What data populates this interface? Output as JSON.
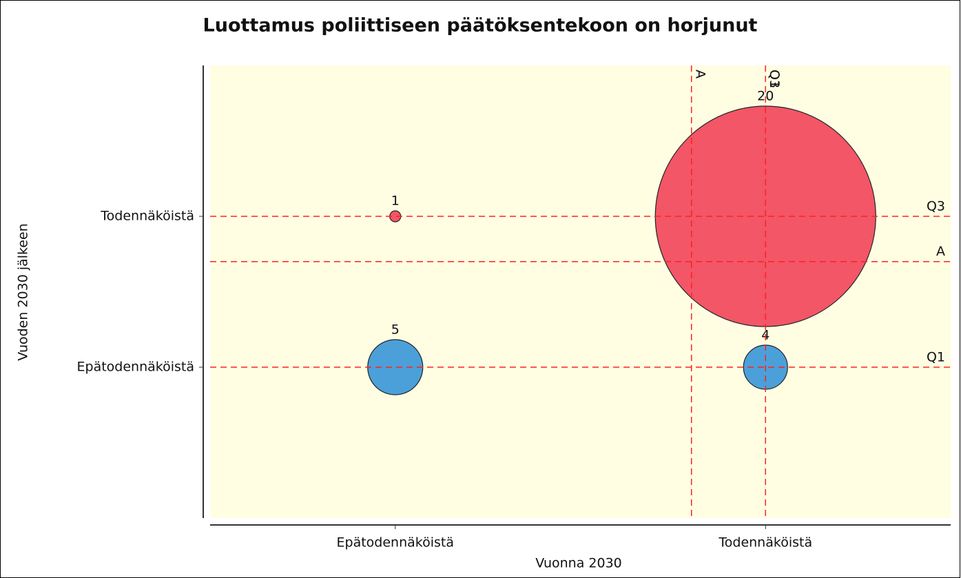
{
  "chart_data": {
    "type": "bubble",
    "title": "Luottamus poliittiseen päätöksentekoon on horjunut",
    "x_label": "Vuonna 2030",
    "y_label": "Vuoden 2030 jälkeen",
    "xlim": [
      0,
      2
    ],
    "xticks": [
      {
        "value": 0.5,
        "label": "Epätodennäköistä"
      },
      {
        "value": 1.5,
        "label": "Todennäköistä"
      }
    ],
    "ylim": [
      0,
      3
    ],
    "yticks": [
      {
        "value": 1,
        "label": "Epätodennäköistä"
      },
      {
        "value": 2,
        "label": "Todennäköistä"
      }
    ],
    "x": [
      0.5,
      1.5,
      0.5,
      1.5
    ],
    "y": [
      2,
      2,
      1,
      1
    ],
    "sizes": [
      1,
      20,
      5,
      4
    ],
    "colors": [
      "#f25667",
      "#f25667",
      "#4ba0d9",
      "#4ba0d9"
    ],
    "x_lines": [
      {
        "label": "A",
        "value": 1.3
      },
      {
        "label": "Q1",
        "value": 1.5
      },
      {
        "label": "Q3",
        "value": 1.5
      }
    ],
    "y_lines": [
      {
        "label": "Q3",
        "value": 2
      },
      {
        "label": "A",
        "value": 1.7
      },
      {
        "label": "Q1",
        "value": 1
      }
    ],
    "line_color": "#ff2020",
    "background": "#fffee3"
  }
}
